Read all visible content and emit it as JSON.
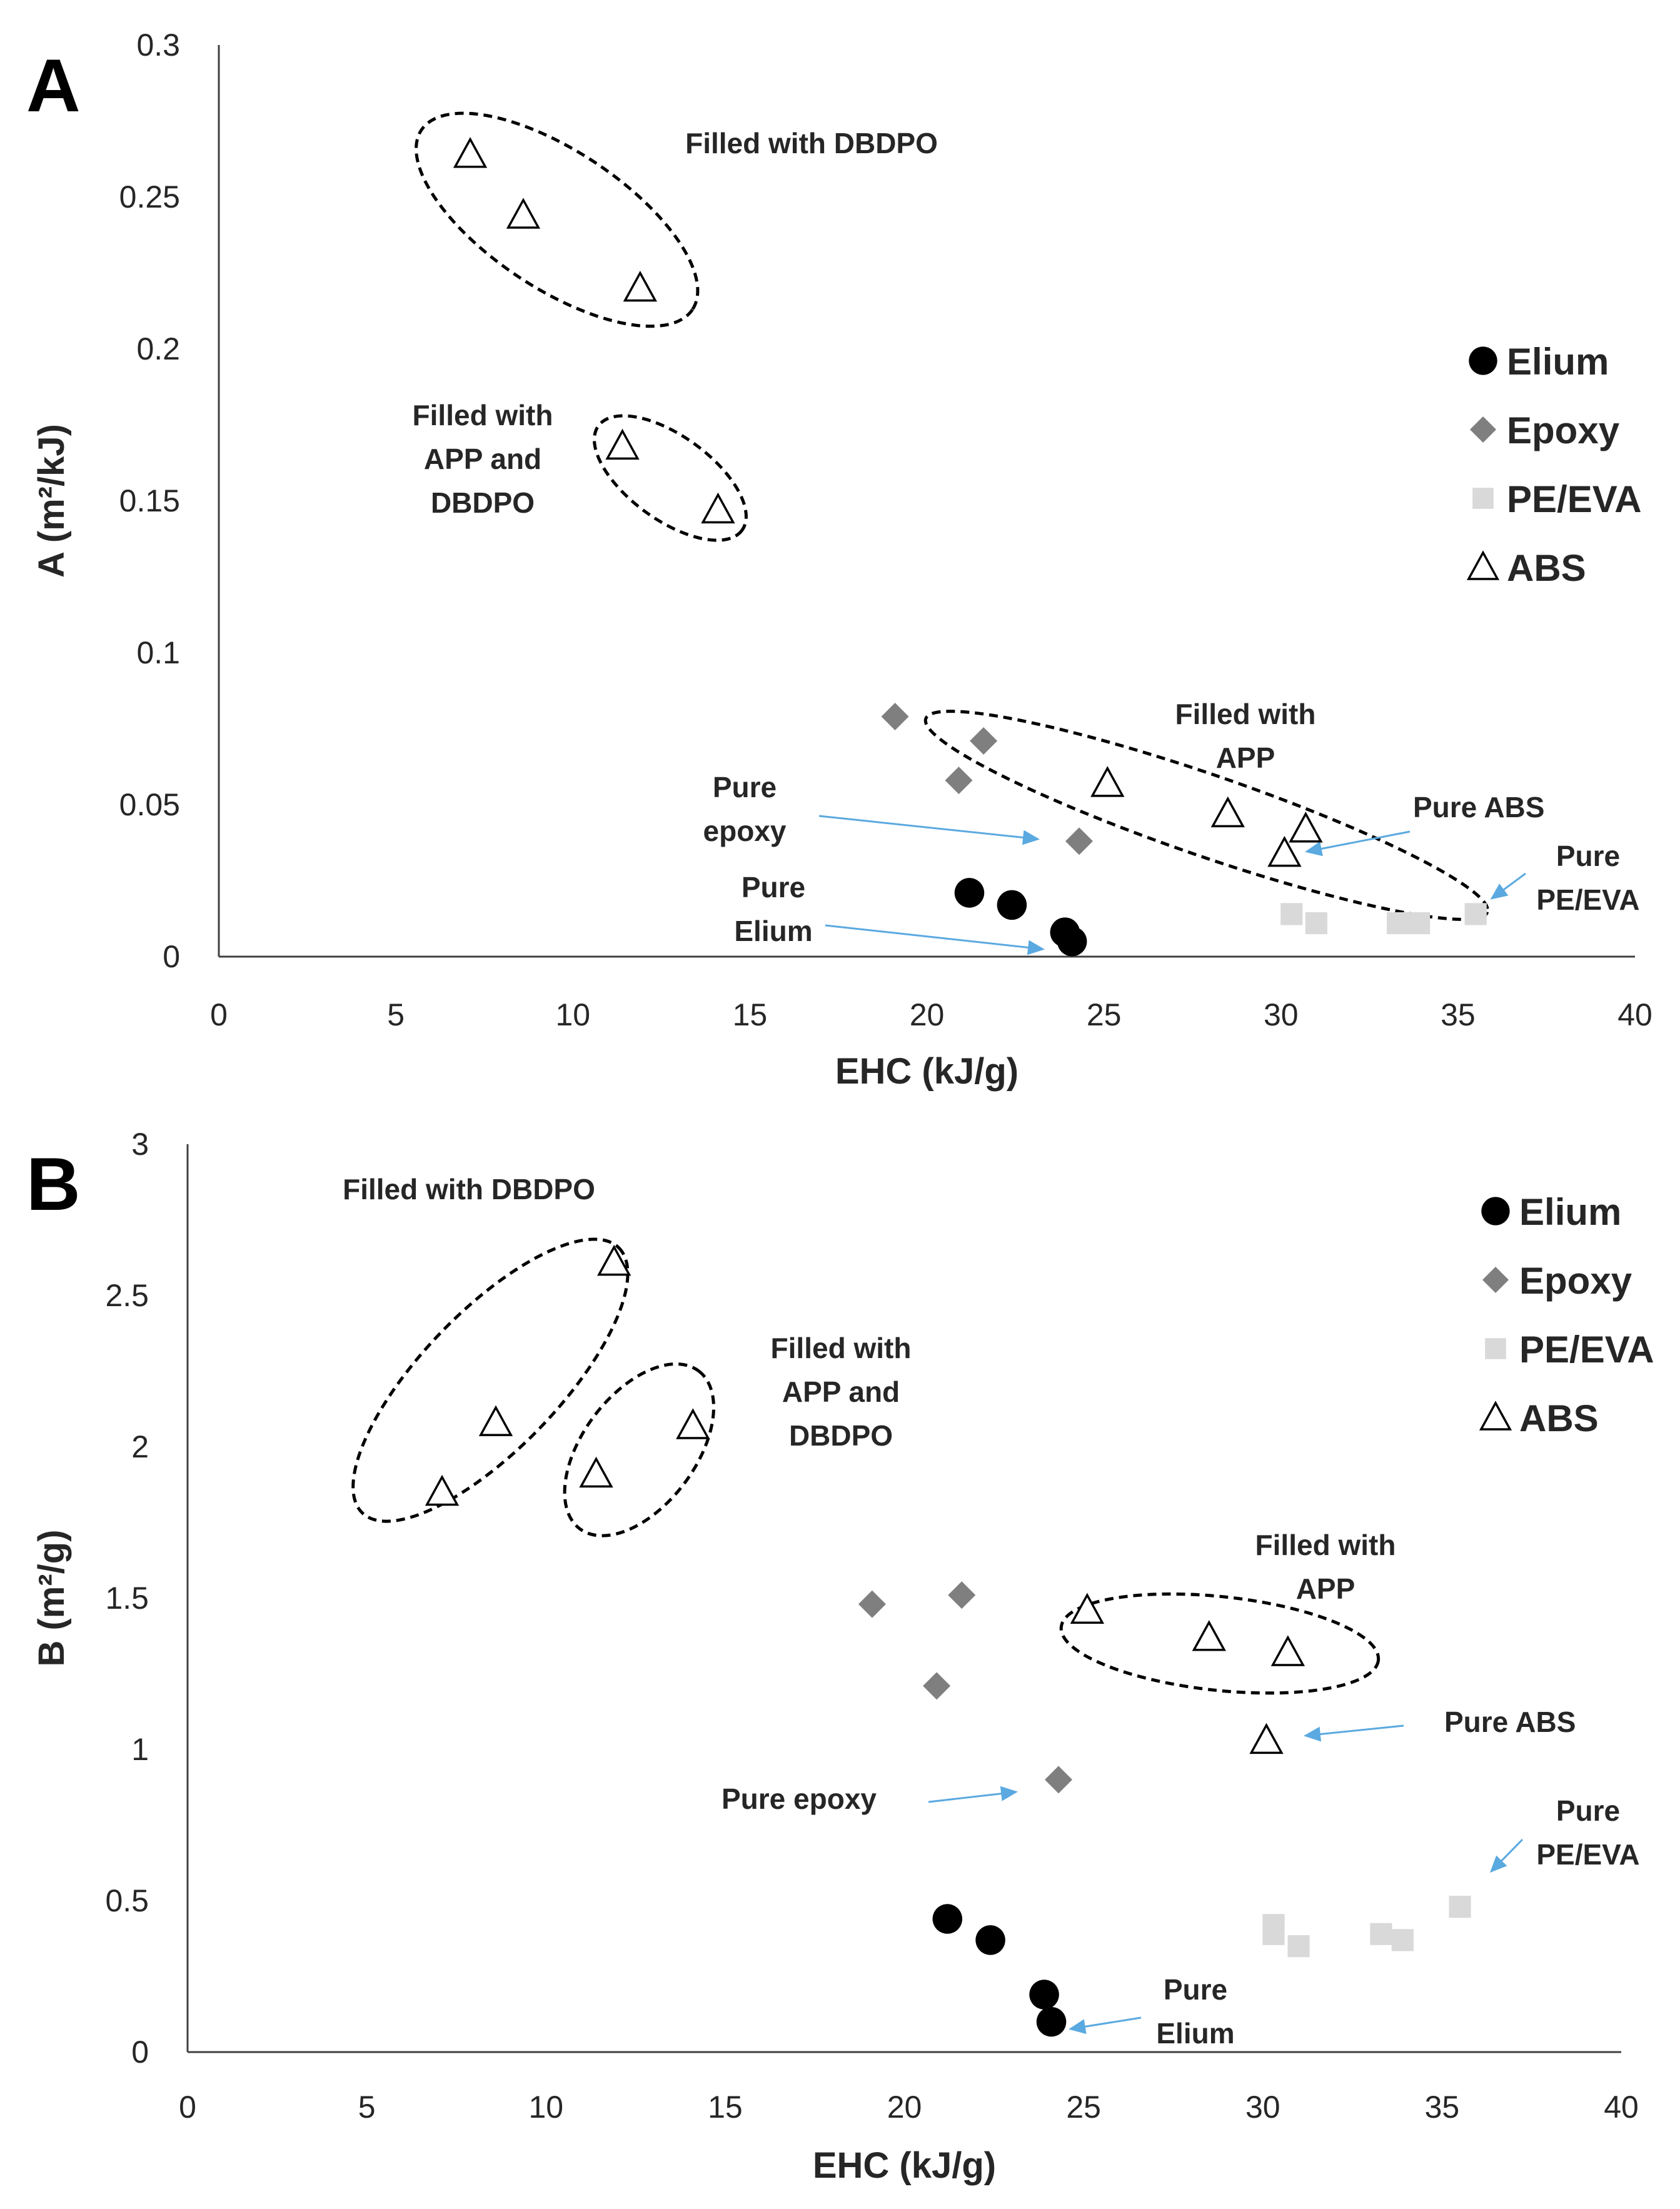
{
  "chart_data": [
    {
      "type": "scatter",
      "panel_label": "A",
      "xlabel": "EHC (kJ/g)",
      "ylabel": "A (m²/kJ)",
      "xlim": [
        0,
        40
      ],
      "ylim": [
        0,
        0.3
      ],
      "xticks": [
        "0",
        "5",
        "10",
        "15",
        "20",
        "25",
        "30",
        "35",
        "40"
      ],
      "yticks": [
        "0",
        "0.05",
        "0.1",
        "0.15",
        "0.2",
        "0.25",
        "0.3"
      ],
      "grid": false,
      "legend_position": "right",
      "series": [
        {
          "name": "Elium",
          "marker": "circle",
          "color": "#000000",
          "points": [
            [
              21.2,
              0.021
            ],
            [
              22.4,
              0.017
            ],
            [
              23.9,
              0.008
            ],
            [
              24.1,
              0.005
            ]
          ]
        },
        {
          "name": "Epoxy",
          "marker": "diamond",
          "color": "#7f7f7f",
          "points": [
            [
              19.1,
              0.079
            ],
            [
              21.6,
              0.071
            ],
            [
              20.9,
              0.058
            ],
            [
              24.3,
              0.038
            ]
          ]
        },
        {
          "name": "PE/EVA",
          "marker": "square",
          "color": "#d9d9d9",
          "points": [
            [
              30.3,
              0.014
            ],
            [
              31.0,
              0.011
            ],
            [
              33.3,
              0.011
            ],
            [
              33.9,
              0.011
            ],
            [
              35.5,
              0.014
            ]
          ]
        },
        {
          "name": "ABS",
          "marker": "triangle",
          "color": "#000000",
          "points": [
            [
              7.1,
              0.264
            ],
            [
              8.6,
              0.244
            ],
            [
              11.9,
              0.22
            ],
            [
              11.4,
              0.168
            ],
            [
              14.1,
              0.147
            ],
            [
              25.1,
              0.057
            ],
            [
              28.5,
              0.047
            ],
            [
              30.7,
              0.042
            ],
            [
              30.1,
              0.034
            ]
          ]
        }
      ],
      "annotations": [
        {
          "lines": [
            "Filled with DBDPO"
          ]
        },
        {
          "lines": [
            "Filled with",
            "APP and",
            "DBDPO"
          ]
        },
        {
          "lines": [
            "Filled with",
            "APP"
          ]
        },
        {
          "lines": [
            "Pure",
            "epoxy"
          ]
        },
        {
          "lines": [
            "Pure",
            "Elium"
          ]
        },
        {
          "lines": [
            "Pure ABS"
          ]
        },
        {
          "lines": [
            "Pure",
            "PE/EVA"
          ]
        }
      ]
    },
    {
      "type": "scatter",
      "panel_label": "B",
      "xlabel": "EHC (kJ/g)",
      "ylabel": "B (m²/g)",
      "xlim": [
        0,
        40
      ],
      "ylim": [
        0,
        3
      ],
      "xticks": [
        "0",
        "5",
        "10",
        "15",
        "20",
        "25",
        "30",
        "35",
        "40"
      ],
      "yticks": [
        "0",
        "0.5",
        "1",
        "1.5",
        "2",
        "2.5",
        "3"
      ],
      "grid": false,
      "legend_position": "top-right",
      "series": [
        {
          "name": "Elium",
          "marker": "circle",
          "color": "#000000",
          "points": [
            [
              21.2,
              0.44
            ],
            [
              22.4,
              0.37
            ],
            [
              23.9,
              0.19
            ],
            [
              24.1,
              0.1
            ]
          ]
        },
        {
          "name": "Epoxy",
          "marker": "diamond",
          "color": "#7f7f7f",
          "points": [
            [
              19.1,
              1.48
            ],
            [
              21.6,
              1.51
            ],
            [
              20.9,
              1.21
            ],
            [
              24.3,
              0.9
            ]
          ]
        },
        {
          "name": "PE/EVA",
          "marker": "square",
          "color": "#d9d9d9",
          "points": [
            [
              30.3,
              0.42
            ],
            [
              30.3,
              0.39
            ],
            [
              31.0,
              0.35
            ],
            [
              33.3,
              0.39
            ],
            [
              33.9,
              0.37
            ],
            [
              35.5,
              0.48
            ]
          ]
        },
        {
          "name": "ABS",
          "marker": "triangle",
          "color": "#000000",
          "points": [
            [
              7.1,
              1.85
            ],
            [
              8.6,
              2.08
            ],
            [
              11.9,
              2.61
            ],
            [
              11.4,
              1.91
            ],
            [
              14.1,
              2.07
            ],
            [
              25.1,
              1.46
            ],
            [
              28.5,
              1.37
            ],
            [
              30.7,
              1.32
            ],
            [
              30.1,
              1.03
            ]
          ]
        }
      ],
      "annotations": [
        {
          "lines": [
            "Filled with DBDPO"
          ]
        },
        {
          "lines": [
            "Filled with",
            "APP and",
            "DBDPO"
          ]
        },
        {
          "lines": [
            "Filled with",
            "APP"
          ]
        },
        {
          "lines": [
            "Pure epoxy"
          ]
        },
        {
          "lines": [
            "Pure",
            "Elium"
          ]
        },
        {
          "lines": [
            "Pure ABS"
          ]
        },
        {
          "lines": [
            "Pure",
            "PE/EVA"
          ]
        }
      ]
    }
  ]
}
